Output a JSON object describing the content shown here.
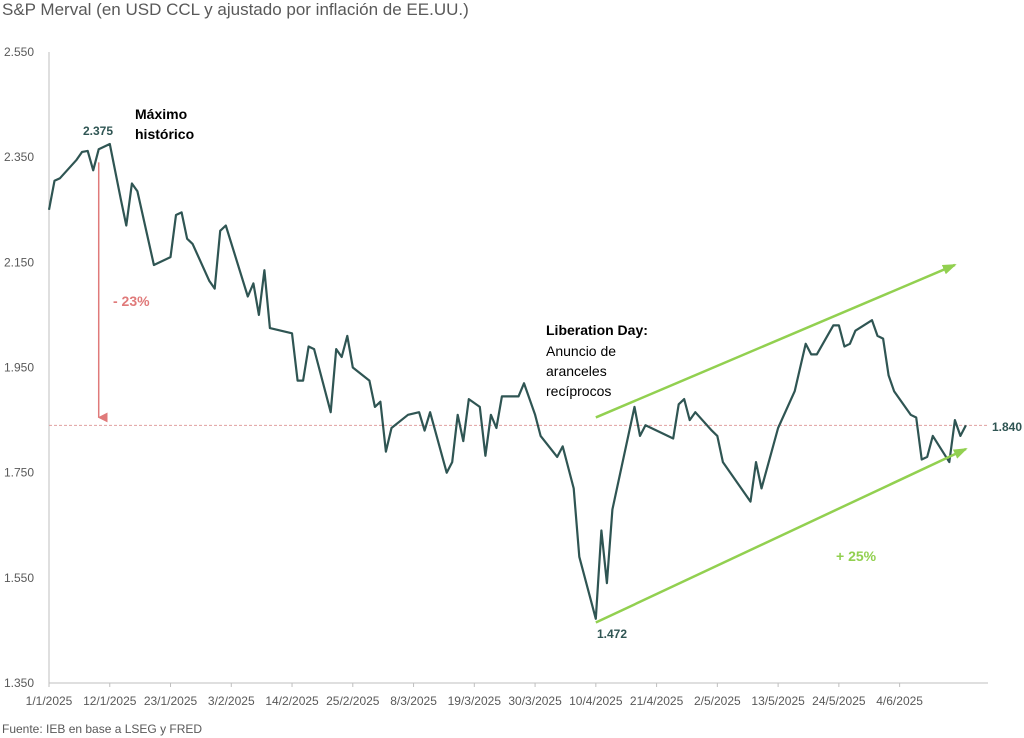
{
  "title": "S&P Merval (en USD CCL y ajustado por inflación de EE.UU.)",
  "source": "Fuente: IEB en base a LSEG y FRED",
  "colors": {
    "line": "#2f5553",
    "down_arrow": "#e07a7a",
    "trend": "#92d050",
    "reference": "#e0a0a0",
    "axis": "#bfbfbf",
    "tick_text": "#595959"
  },
  "chart_data": {
    "type": "line",
    "ylim": [
      1350,
      2550
    ],
    "yticks": [
      1350,
      1550,
      1750,
      1950,
      2150,
      2350,
      2550
    ],
    "ytick_labels": [
      "1.350",
      "1.550",
      "1.750",
      "1.950",
      "2.150",
      "2.350",
      "2.550"
    ],
    "xlim": [
      "2025-01-01",
      "2025-06-20"
    ],
    "xticks": [
      "2025-01-01",
      "2025-01-12",
      "2025-01-23",
      "2025-02-03",
      "2025-02-14",
      "2025-02-25",
      "2025-03-08",
      "2025-03-19",
      "2025-03-30",
      "2025-04-10",
      "2025-04-21",
      "2025-05-02",
      "2025-05-13",
      "2025-05-24",
      "2025-06-04"
    ],
    "xtick_labels": [
      "1/1/2025",
      "12/1/2025",
      "23/1/2025",
      "3/2/2025",
      "14/2/2025",
      "25/2/2025",
      "8/3/2025",
      "19/3/2025",
      "30/3/2025",
      "10/4/2025",
      "21/4/2025",
      "2/5/2025",
      "13/5/2025",
      "24/5/2025",
      "4/6/2025"
    ],
    "grid": false,
    "reference_line": 1840,
    "series": [
      {
        "points": [
          [
            "2025-01-01",
            2250
          ],
          [
            "2025-01-02",
            2305
          ],
          [
            "2025-01-03",
            2310
          ],
          [
            "2025-01-06",
            2345
          ],
          [
            "2025-01-07",
            2360
          ],
          [
            "2025-01-08",
            2362
          ],
          [
            "2025-01-09",
            2325
          ],
          [
            "2025-01-10",
            2365
          ],
          [
            "2025-01-12",
            2375
          ],
          [
            "2025-01-14",
            2270
          ],
          [
            "2025-01-15",
            2220
          ],
          [
            "2025-01-16",
            2300
          ],
          [
            "2025-01-17",
            2285
          ],
          [
            "2025-01-20",
            2145
          ],
          [
            "2025-01-23",
            2160
          ],
          [
            "2025-01-24",
            2240
          ],
          [
            "2025-01-25",
            2245
          ],
          [
            "2025-01-26",
            2195
          ],
          [
            "2025-01-27",
            2185
          ],
          [
            "2025-01-30",
            2115
          ],
          [
            "2025-01-31",
            2100
          ],
          [
            "2025-02-01",
            2210
          ],
          [
            "2025-02-02",
            2220
          ],
          [
            "2025-02-06",
            2085
          ],
          [
            "2025-02-07",
            2110
          ],
          [
            "2025-02-08",
            2050
          ],
          [
            "2025-02-09",
            2135
          ],
          [
            "2025-02-10",
            2025
          ],
          [
            "2025-02-14",
            2015
          ],
          [
            "2025-02-15",
            1925
          ],
          [
            "2025-02-16",
            1925
          ],
          [
            "2025-02-17",
            1990
          ],
          [
            "2025-02-18",
            1985
          ],
          [
            "2025-02-21",
            1865
          ],
          [
            "2025-02-22",
            1985
          ],
          [
            "2025-02-23",
            1970
          ],
          [
            "2025-02-24",
            2010
          ],
          [
            "2025-02-25",
            1950
          ],
          [
            "2025-02-28",
            1925
          ],
          [
            "2025-03-01",
            1875
          ],
          [
            "2025-03-02",
            1885
          ],
          [
            "2025-03-03",
            1790
          ],
          [
            "2025-03-04",
            1835
          ],
          [
            "2025-03-07",
            1860
          ],
          [
            "2025-03-09",
            1865
          ],
          [
            "2025-03-10",
            1830
          ],
          [
            "2025-03-11",
            1865
          ],
          [
            "2025-03-14",
            1750
          ],
          [
            "2025-03-15",
            1770
          ],
          [
            "2025-03-16",
            1860
          ],
          [
            "2025-03-17",
            1810
          ],
          [
            "2025-03-18",
            1890
          ],
          [
            "2025-03-20",
            1875
          ],
          [
            "2025-03-21",
            1782
          ],
          [
            "2025-03-22",
            1860
          ],
          [
            "2025-03-23",
            1835
          ],
          [
            "2025-03-24",
            1895
          ],
          [
            "2025-03-27",
            1895
          ],
          [
            "2025-03-28",
            1920
          ],
          [
            "2025-03-30",
            1860
          ],
          [
            "2025-03-31",
            1820
          ],
          [
            "2025-04-03",
            1780
          ],
          [
            "2025-04-04",
            1800
          ],
          [
            "2025-04-06",
            1720
          ],
          [
            "2025-04-07",
            1590
          ],
          [
            "2025-04-10",
            1472
          ],
          [
            "2025-04-11",
            1640
          ],
          [
            "2025-04-12",
            1540
          ],
          [
            "2025-04-13",
            1680
          ],
          [
            "2025-04-17",
            1875
          ],
          [
            "2025-04-18",
            1820
          ],
          [
            "2025-04-19",
            1840
          ],
          [
            "2025-04-24",
            1815
          ],
          [
            "2025-04-25",
            1880
          ],
          [
            "2025-04-26",
            1890
          ],
          [
            "2025-04-27",
            1850
          ],
          [
            "2025-04-28",
            1865
          ],
          [
            "2025-05-01",
            1830
          ],
          [
            "2025-05-02",
            1820
          ],
          [
            "2025-05-03",
            1770
          ],
          [
            "2025-05-08",
            1695
          ],
          [
            "2025-05-09",
            1770
          ],
          [
            "2025-05-10",
            1720
          ],
          [
            "2025-05-13",
            1835
          ],
          [
            "2025-05-16",
            1905
          ],
          [
            "2025-05-18",
            1995
          ],
          [
            "2025-05-19",
            1975
          ],
          [
            "2025-05-20",
            1975
          ],
          [
            "2025-05-23",
            2030
          ],
          [
            "2025-05-24",
            2030
          ],
          [
            "2025-05-25",
            1990
          ],
          [
            "2025-05-26",
            1995
          ],
          [
            "2025-05-27",
            2020
          ],
          [
            "2025-05-30",
            2040
          ],
          [
            "2025-05-31",
            2010
          ],
          [
            "2025-06-01",
            2005
          ],
          [
            "2025-06-02",
            1935
          ],
          [
            "2025-06-03",
            1905
          ],
          [
            "2025-06-06",
            1860
          ],
          [
            "2025-06-07",
            1855
          ],
          [
            "2025-06-08",
            1775
          ],
          [
            "2025-06-09",
            1780
          ],
          [
            "2025-06-10",
            1820
          ],
          [
            "2025-06-13",
            1770
          ],
          [
            "2025-06-14",
            1850
          ],
          [
            "2025-06-15",
            1820
          ],
          [
            "2025-06-16",
            1840
          ]
        ]
      }
    ],
    "annotations": {
      "peak_value": "2.375",
      "peak_label_1": "Máximo",
      "peak_label_2": "histórico",
      "drop_label": "- 23%",
      "event_title": "Liberation Day:",
      "event_line_1": "Anuncio de",
      "event_line_2": "aranceles",
      "event_line_3": "recíprocos",
      "low_value": "1.472",
      "last_value": "1.840",
      "rise_label": "+ 25%"
    },
    "trend_lines": {
      "upper": [
        [
          "2025-04-10",
          1855
        ],
        [
          "2025-06-14",
          2145
        ]
      ],
      "lower": [
        [
          "2025-04-10",
          1465
        ],
        [
          "2025-06-16",
          1795
        ]
      ]
    },
    "drop_arrow": {
      "date": "2025-01-10",
      "from": 2340,
      "to": 1855
    }
  }
}
